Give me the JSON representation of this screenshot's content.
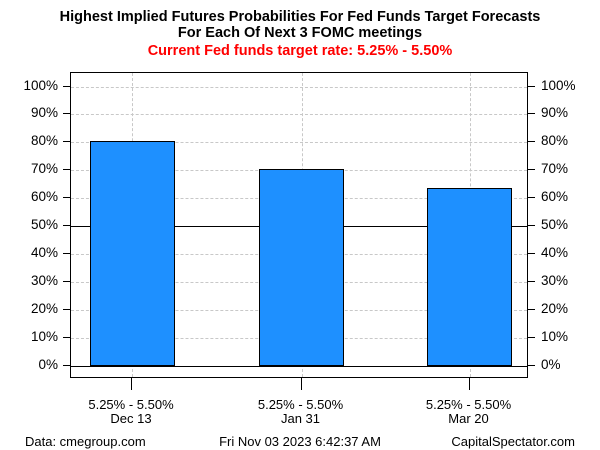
{
  "colors": {
    "bar": "#1e90ff",
    "subtitle": "#ff0000",
    "grid": "#c8c8c8",
    "axis": "#000000"
  },
  "chart_data": {
    "type": "bar",
    "title_lines": [
      "Highest Implied Futures Probabilities For Fed Funds Target Forecasts",
      "For Each Of Next 3 FOMC meetings"
    ],
    "subtitle": "Current Fed funds target rate: 5.25% - 5.50%",
    "categories": [
      {
        "rate": "5.25% - 5.50%",
        "date": "Dec 13"
      },
      {
        "rate": "5.25% - 5.50%",
        "date": "Jan 31"
      },
      {
        "rate": "5.25% - 5.50%",
        "date": "Mar 20"
      }
    ],
    "values": [
      80.4,
      70.5,
      63.8
    ],
    "bar_color": "#1e90ff",
    "ylim": [
      0,
      100
    ],
    "yticks": [
      0,
      10,
      20,
      30,
      40,
      50,
      60,
      70,
      80,
      90,
      100
    ],
    "ytick_labels": [
      "0%",
      "10%",
      "20%",
      "30%",
      "40%",
      "50%",
      "60%",
      "70%",
      "80%",
      "90%",
      "100%"
    ],
    "ylabel_sides": [
      "left",
      "right"
    ],
    "grid": "on",
    "grid_style": "dashed horizontal at every 10% and dashed vertical at each bar center",
    "reference_lines": [
      {
        "y": 0,
        "style": "solid"
      },
      {
        "y": 50,
        "style": "solid"
      }
    ],
    "legend": "none"
  },
  "footer": {
    "left": "Data: cmegroup.com",
    "center": "Fri Nov 03 2023 6:42:37 AM",
    "right": "CapitalSpectator.com"
  }
}
